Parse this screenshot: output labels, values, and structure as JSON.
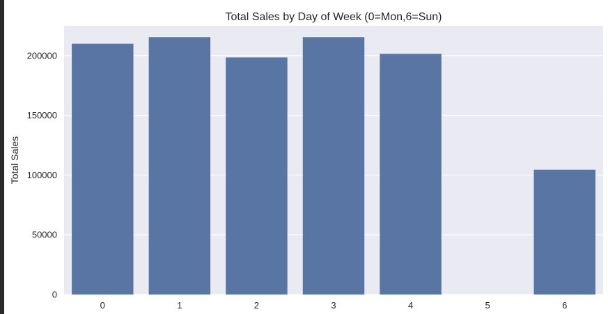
{
  "chart_data": {
    "type": "bar",
    "title": "Total Sales by Day of Week (0=Mon,6=Sun)",
    "xlabel": "",
    "ylabel": "Total Sales",
    "categories": [
      "0",
      "1",
      "2",
      "3",
      "4",
      "5",
      "6"
    ],
    "values": [
      210000,
      215500,
      198500,
      215500,
      201500,
      0,
      104500
    ],
    "ylim": [
      0,
      225000
    ],
    "yticks": [
      0,
      50000,
      100000,
      150000,
      200000
    ],
    "ytick_labels": [
      "0",
      "50000",
      "100000",
      "150000",
      "200000"
    ],
    "grid": true,
    "colors": {
      "bar": "#5975a4",
      "plot_bg": "#eaeaf2",
      "grid": "#ffffff"
    }
  }
}
